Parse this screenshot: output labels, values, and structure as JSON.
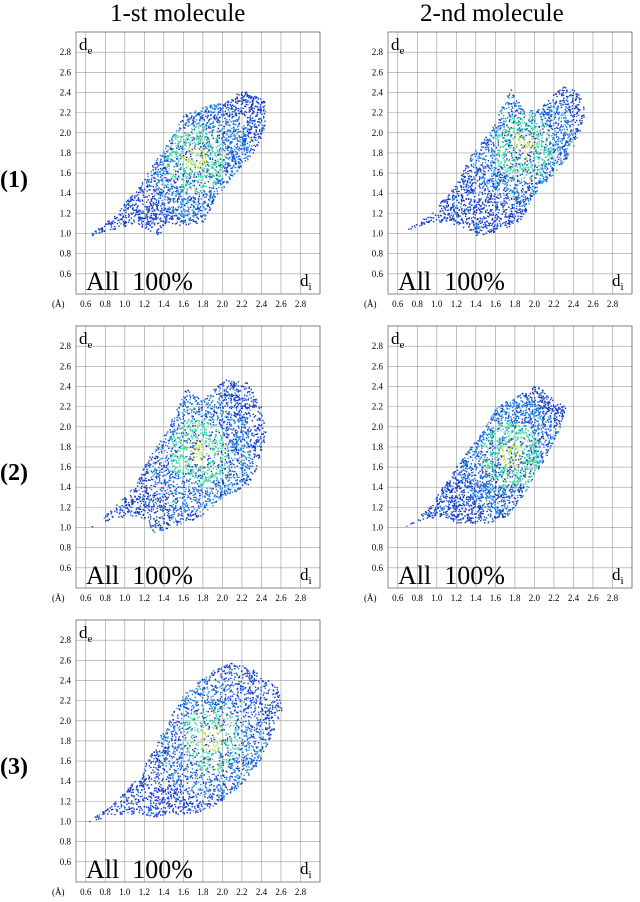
{
  "column_titles": [
    "1-st molecule",
    "2-nd molecule"
  ],
  "row_labels": [
    "(1)",
    "(2)",
    "(3)"
  ],
  "axis": {
    "x_label_main": "d",
    "x_label_sub": "i",
    "y_label_main": "d",
    "y_label_sub": "e",
    "unit_label": "(Å)",
    "ticks": [
      "0.6",
      "0.8",
      "1.0",
      "1.2",
      "1.4",
      "1.6",
      "1.8",
      "2.0",
      "2.2",
      "2.4",
      "2.6",
      "2.8"
    ],
    "xlim": [
      0.5,
      3.0
    ],
    "ylim": [
      0.4,
      3.0
    ]
  },
  "colors": {
    "low": "#1436c8",
    "mid": "#1c8de6",
    "high": "#37d9a4",
    "peak": "#c8e23a",
    "grid": "#9a9a9a"
  },
  "chart_data": [
    {
      "type": "scatter",
      "title": "1-st molecule (1)",
      "annotation": "All  100%",
      "outline": [
        [
          0.61,
          0.97
        ],
        [
          0.9,
          1.2
        ],
        [
          1.15,
          1.48
        ],
        [
          1.3,
          1.72
        ],
        [
          1.47,
          1.95
        ],
        [
          1.6,
          2.18
        ],
        [
          1.85,
          2.28
        ],
        [
          2.02,
          2.3
        ],
        [
          2.2,
          2.43
        ],
        [
          2.32,
          2.37
        ],
        [
          2.45,
          2.32
        ],
        [
          2.42,
          2.0
        ],
        [
          2.3,
          1.78
        ],
        [
          2.12,
          1.6
        ],
        [
          1.95,
          1.38
        ],
        [
          1.8,
          1.12
        ],
        [
          1.6,
          1.08
        ],
        [
          1.42,
          1.12
        ],
        [
          1.35,
          0.98
        ],
        [
          1.22,
          1.05
        ],
        [
          1.1,
          1.1
        ],
        [
          0.9,
          1.05
        ]
      ],
      "dense_center": [
        1.72,
        1.75
      ]
    },
    {
      "type": "scatter",
      "title": "2-nd molecule (1)",
      "annotation": "All  100%",
      "outline": [
        [
          0.67,
          1.03
        ],
        [
          0.95,
          1.22
        ],
        [
          1.2,
          1.5
        ],
        [
          1.35,
          1.8
        ],
        [
          1.55,
          2.02
        ],
        [
          1.75,
          2.45
        ],
        [
          1.9,
          2.2
        ],
        [
          2.1,
          2.3
        ],
        [
          2.3,
          2.48
        ],
        [
          2.45,
          2.4
        ],
        [
          2.52,
          2.22
        ],
        [
          2.45,
          1.98
        ],
        [
          2.35,
          1.78
        ],
        [
          2.2,
          1.6
        ],
        [
          2.0,
          1.4
        ],
        [
          1.85,
          1.12
        ],
        [
          1.6,
          1.02
        ],
        [
          1.42,
          0.98
        ],
        [
          1.28,
          1.05
        ],
        [
          1.1,
          1.13
        ],
        [
          0.88,
          1.1
        ]
      ],
      "dense_center": [
        1.88,
        1.87
      ]
    },
    {
      "type": "scatter",
      "title": "1-st molecule (2)",
      "annotation": "All  100%",
      "outline": [
        [
          0.65,
          1.01
        ],
        [
          0.88,
          1.2
        ],
        [
          1.1,
          1.42
        ],
        [
          1.25,
          1.72
        ],
        [
          1.42,
          1.95
        ],
        [
          1.62,
          2.38
        ],
        [
          1.8,
          2.28
        ],
        [
          2.02,
          2.48
        ],
        [
          2.25,
          2.45
        ],
        [
          2.4,
          2.2
        ],
        [
          2.45,
          1.95
        ],
        [
          2.35,
          1.6
        ],
        [
          2.25,
          1.42
        ],
        [
          2.0,
          1.3
        ],
        [
          1.75,
          1.1
        ],
        [
          1.5,
          1.02
        ],
        [
          1.3,
          0.95
        ],
        [
          1.18,
          1.1
        ],
        [
          1.05,
          1.12
        ],
        [
          0.85,
          1.08
        ]
      ],
      "dense_center": [
        1.75,
        1.75
      ]
    },
    {
      "type": "scatter",
      "title": "2-nd molecule (2)",
      "annotation": "All  100%",
      "outline": [
        [
          0.65,
          1.0
        ],
        [
          0.92,
          1.2
        ],
        [
          1.12,
          1.5
        ],
        [
          1.3,
          1.75
        ],
        [
          1.48,
          1.98
        ],
        [
          1.62,
          2.22
        ],
        [
          1.8,
          2.3
        ],
        [
          2.02,
          2.42
        ],
        [
          2.2,
          2.27
        ],
        [
          2.32,
          2.2
        ],
        [
          2.25,
          1.98
        ],
        [
          2.15,
          1.78
        ],
        [
          2.05,
          1.58
        ],
        [
          1.88,
          1.32
        ],
        [
          1.72,
          1.12
        ],
        [
          1.52,
          1.05
        ],
        [
          1.35,
          1.05
        ],
        [
          1.2,
          1.05
        ],
        [
          1.05,
          1.12
        ],
        [
          0.85,
          1.08
        ]
      ],
      "dense_center": [
        1.75,
        1.72
      ]
    },
    {
      "type": "scatter",
      "title": "1-st molecule (3)",
      "annotation": "All  100%",
      "outline": [
        [
          0.62,
          1.0
        ],
        [
          0.92,
          1.22
        ],
        [
          1.15,
          1.48
        ],
        [
          1.3,
          1.75
        ],
        [
          1.45,
          2.02
        ],
        [
          1.62,
          2.3
        ],
        [
          1.85,
          2.48
        ],
        [
          2.05,
          2.58
        ],
        [
          2.25,
          2.55
        ],
        [
          2.55,
          2.35
        ],
        [
          2.62,
          2.15
        ],
        [
          2.5,
          1.85
        ],
        [
          2.38,
          1.6
        ],
        [
          2.2,
          1.38
        ],
        [
          1.95,
          1.18
        ],
        [
          1.72,
          1.08
        ],
        [
          1.5,
          1.08
        ],
        [
          1.3,
          1.05
        ],
        [
          1.15,
          1.08
        ],
        [
          0.92,
          1.08
        ]
      ],
      "dense_center": [
        1.88,
        1.83
      ]
    }
  ]
}
